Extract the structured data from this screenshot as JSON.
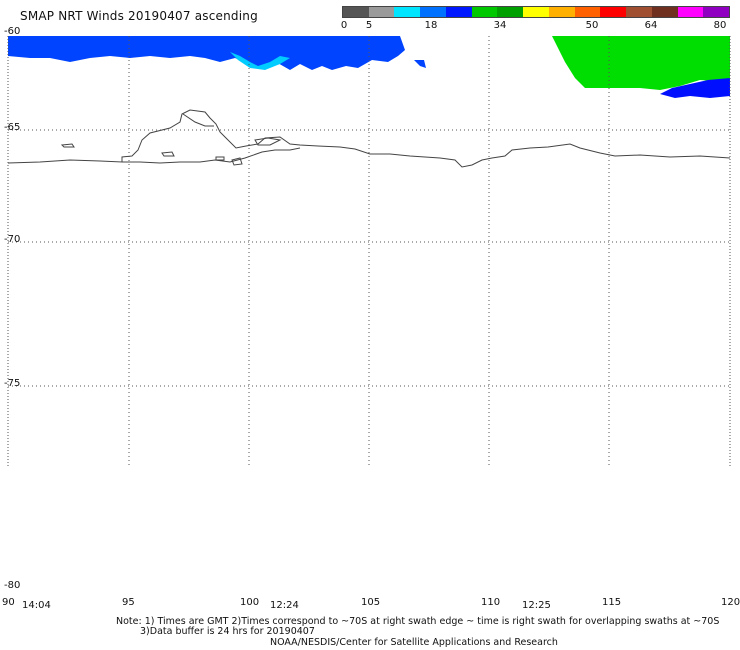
{
  "title": "SMAP NRT Winds 20190407 ascending",
  "colorbar": {
    "ticks": [
      "0",
      "5",
      "18",
      "34",
      "50",
      "64",
      "80"
    ],
    "segments": [
      {
        "color": "#555555"
      },
      {
        "color": "#9a9a9a"
      },
      {
        "color": "#00e5ff"
      },
      {
        "color": "#0070ff"
      },
      {
        "color": "#0018ff"
      },
      {
        "color": "#00c800"
      },
      {
        "color": "#00a000"
      },
      {
        "color": "#ffff00"
      },
      {
        "color": "#ffb000"
      },
      {
        "color": "#ff6000"
      },
      {
        "color": "#ff0000"
      },
      {
        "color": "#a05030"
      },
      {
        "color": "#703020"
      },
      {
        "color": "#ff00ff"
      },
      {
        "color": "#9000c0"
      }
    ]
  },
  "map": {
    "lat_labels": [
      "-60",
      "-65",
      "-70",
      "-75",
      "-80"
    ],
    "lon_labels": [
      "90",
      "95",
      "100",
      "105",
      "110",
      "115",
      "120"
    ],
    "time_labels": [
      "14:04",
      "12:24",
      "12:25"
    ],
    "swath_colors": {
      "light_blue": "#00ccff",
      "blue": "#0044ff",
      "dark_blue": "#0010ff",
      "green": "#00dd00"
    }
  },
  "notes": {
    "line1": "Note: 1) Times are GMT 2)Times correspond to ~70S at right swath edge ~ time is right swath for overlapping swaths at ~70S",
    "line2": "3)Data buffer is 24 hrs for 20190407",
    "line3": "NOAA/NESDIS/Center for Satellite Applications and Research"
  }
}
